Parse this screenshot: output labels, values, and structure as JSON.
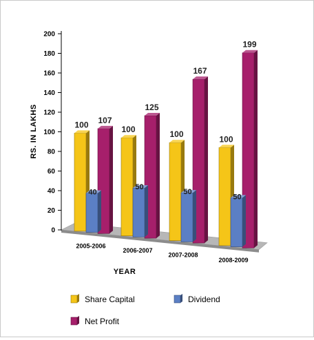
{
  "chart_data": {
    "type": "bar",
    "categories": [
      "2005-2006",
      "2006-2007",
      "2007-2008",
      "2008-2009"
    ],
    "series": [
      {
        "name": "Share Capital",
        "values": [
          100,
          100,
          100,
          100
        ],
        "color": "#F5C518"
      },
      {
        "name": "Dividend",
        "values": [
          40,
          50,
          50,
          50
        ],
        "color": "#5B7FC4"
      },
      {
        "name": "Net Profit",
        "values": [
          107,
          125,
          167,
          199
        ],
        "color": "#A61F6B"
      }
    ],
    "xlabel": "YEAR",
    "ylabel": "RS. IN LAKHS",
    "ylim": [
      0,
      200
    ],
    "yticks": [
      0,
      20,
      40,
      60,
      80,
      100,
      120,
      140,
      160,
      180,
      200
    ],
    "grid": false,
    "legend_placement": "bottom"
  }
}
